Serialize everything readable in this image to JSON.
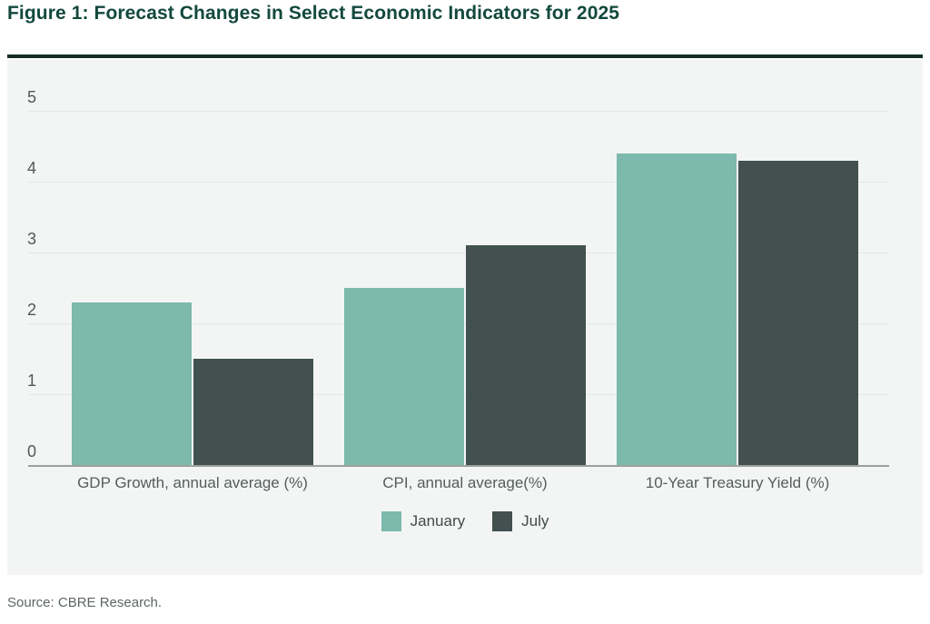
{
  "figure": {
    "title": "Figure 1: Forecast Changes in Select Economic Indicators for 2025",
    "source": "Source: CBRE Research."
  },
  "colors": {
    "title_text": "#12493c",
    "title_rule": "#142f2a",
    "panel_background": "#f3f5f4",
    "gridline": "#e3e7e5",
    "baseline": "#9ba19e",
    "tick_text": "#4f5955",
    "category_text": "#545e5a",
    "legend_text": "#414c48",
    "source_text": "#5d6763",
    "january": "#7db9ac",
    "july": "#42514f"
  },
  "chart_data": {
    "type": "bar",
    "title": "Figure 1: Forecast Changes in Select Economic Indicators for 2025",
    "categories": [
      "GDP Growth, annual average (%)",
      "CPI, annual average(%)",
      "10-Year Treasury Yield (%)"
    ],
    "series": [
      {
        "name": "January",
        "color": "#7db9ac",
        "values": [
          2.3,
          2.5,
          4.4
        ]
      },
      {
        "name": "July",
        "color": "#42514f",
        "values": [
          1.5,
          3.1,
          4.3
        ]
      }
    ],
    "xlabel": "",
    "ylabel": "",
    "ylim": [
      0,
      5
    ],
    "yticks": [
      0,
      1,
      2,
      3,
      4,
      5
    ],
    "grid": true,
    "legend_position": "bottom",
    "source": "Source: CBRE Research."
  }
}
